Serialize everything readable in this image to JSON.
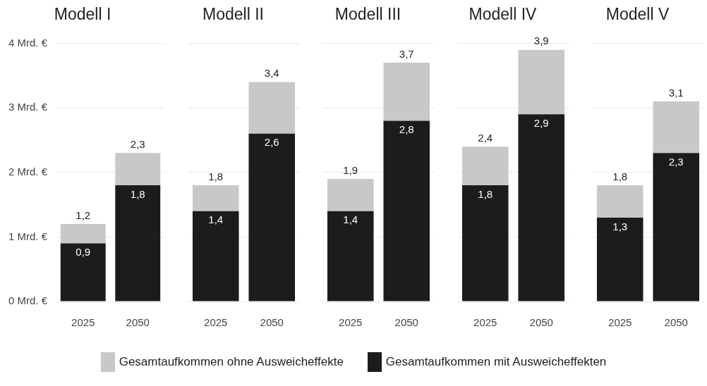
{
  "chart_data": [
    {
      "type": "bar",
      "title": "Modell I",
      "categories": [
        "2025",
        "2050"
      ],
      "stacked": true,
      "ylim": [
        0,
        4
      ],
      "yticks": [
        {
          "value": 0,
          "label": "0 Mrd. €"
        },
        {
          "value": 1,
          "label": "1 Mrd. €"
        },
        {
          "value": 2,
          "label": "2 Mrd. €"
        },
        {
          "value": 3,
          "label": "3 Mrd. €"
        },
        {
          "value": 4,
          "label": "4 Mrd. €"
        }
      ],
      "grid": "y",
      "legend": "bottom",
      "series": [
        {
          "name": "Gesamtaufkommen mit Ausweicheffekten",
          "color": "#1c1c1c",
          "values": [
            0.9,
            1.8
          ],
          "value_labels": [
            "0,9",
            "1,8"
          ]
        },
        {
          "name": "Gesamtaufkommen ohne Ausweicheffekte",
          "color": "#c8c8c8",
          "values": [
            0.3,
            0.5
          ]
        }
      ],
      "totals": [
        "1,2",
        "2,3"
      ]
    },
    {
      "type": "bar",
      "title": "Modell II",
      "categories": [
        "2025",
        "2050"
      ],
      "stacked": true,
      "ylim": [
        0,
        4
      ],
      "yticks": [
        {
          "value": 0,
          "label": null
        },
        {
          "value": 1,
          "label": null
        },
        {
          "value": 2,
          "label": null
        },
        {
          "value": 3,
          "label": null
        },
        {
          "value": 4,
          "label": null
        }
      ],
      "tick_labels": "x",
      "grid": "y",
      "series": [
        {
          "name": "Gesamtaufkommen mit Ausweicheffekten",
          "color": "#1c1c1c",
          "values": [
            1.4,
            2.6
          ],
          "value_labels": [
            "1,4",
            "2,6"
          ]
        },
        {
          "name": "Gesamtaufkommen ohne Ausweicheffekte",
          "color": "#c8c8c8",
          "values": [
            0.4,
            0.8
          ]
        }
      ],
      "totals": [
        "1,8",
        "3,4"
      ]
    },
    {
      "type": "bar",
      "title": "Modell III",
      "categories": [
        "2025",
        "2050"
      ],
      "stacked": true,
      "ylim": [
        0,
        4
      ],
      "yticks": [
        {
          "value": 0,
          "label": null
        },
        {
          "value": 1,
          "label": null
        },
        {
          "value": 2,
          "label": null
        },
        {
          "value": 3,
          "label": null
        },
        {
          "value": 4,
          "label": null
        }
      ],
      "tick_labels": "x",
      "grid": "y",
      "series": [
        {
          "name": "Gesamtaufkommen mit Ausweicheffekten",
          "color": "#1c1c1c",
          "values": [
            1.4,
            2.8
          ],
          "value_labels": [
            "1,4",
            "2,8"
          ]
        },
        {
          "name": "Gesamtaufkommen ohne Ausweicheffekte",
          "color": "#c8c8c8",
          "values": [
            0.5,
            0.9
          ]
        }
      ],
      "totals": [
        "1,9",
        "3,7"
      ]
    },
    {
      "type": "bar",
      "title": "Modell IV",
      "categories": [
        "2025",
        "2050"
      ],
      "stacked": true,
      "ylim": [
        0,
        4
      ],
      "yticks": [
        {
          "value": 0,
          "label": null
        },
        {
          "value": 1,
          "label": null
        },
        {
          "value": 2,
          "label": null
        },
        {
          "value": 3,
          "label": null
        },
        {
          "value": 4,
          "label": null
        }
      ],
      "tick_labels": "x",
      "grid": "y",
      "series": [
        {
          "name": "Gesamtaufkommen mit Ausweicheffekten",
          "color": "#1c1c1c",
          "values": [
            1.8,
            2.9
          ],
          "value_labels": [
            "1,8",
            "2,9"
          ]
        },
        {
          "name": "Gesamtaufkommen ohne Ausweicheffekte",
          "color": "#c8c8c8",
          "values": [
            0.6,
            1.0
          ]
        }
      ],
      "totals": [
        "2,4",
        "3,9"
      ]
    },
    {
      "type": "bar",
      "title": "Modell V",
      "categories": [
        "2025",
        "2050"
      ],
      "stacked": true,
      "ylim": [
        0,
        4
      ],
      "yticks": [
        {
          "value": 0,
          "label": null
        },
        {
          "value": 1,
          "label": null
        },
        {
          "value": 2,
          "label": null
        },
        {
          "value": 3,
          "label": null
        },
        {
          "value": 4,
          "label": null
        }
      ],
      "tick_labels": "x",
      "grid": "y",
      "series": [
        {
          "name": "Gesamtaufkommen mit Ausweicheffekten",
          "color": "#1c1c1c",
          "values": [
            1.3,
            2.3
          ],
          "value_labels": [
            "1,3",
            "2,3"
          ]
        },
        {
          "name": "Gesamtaufkommen ohne Ausweicheffekte",
          "color": "#c8c8c8",
          "values": [
            0.5,
            0.8
          ]
        }
      ],
      "totals": [
        "1,8",
        "3,1"
      ]
    }
  ]
}
